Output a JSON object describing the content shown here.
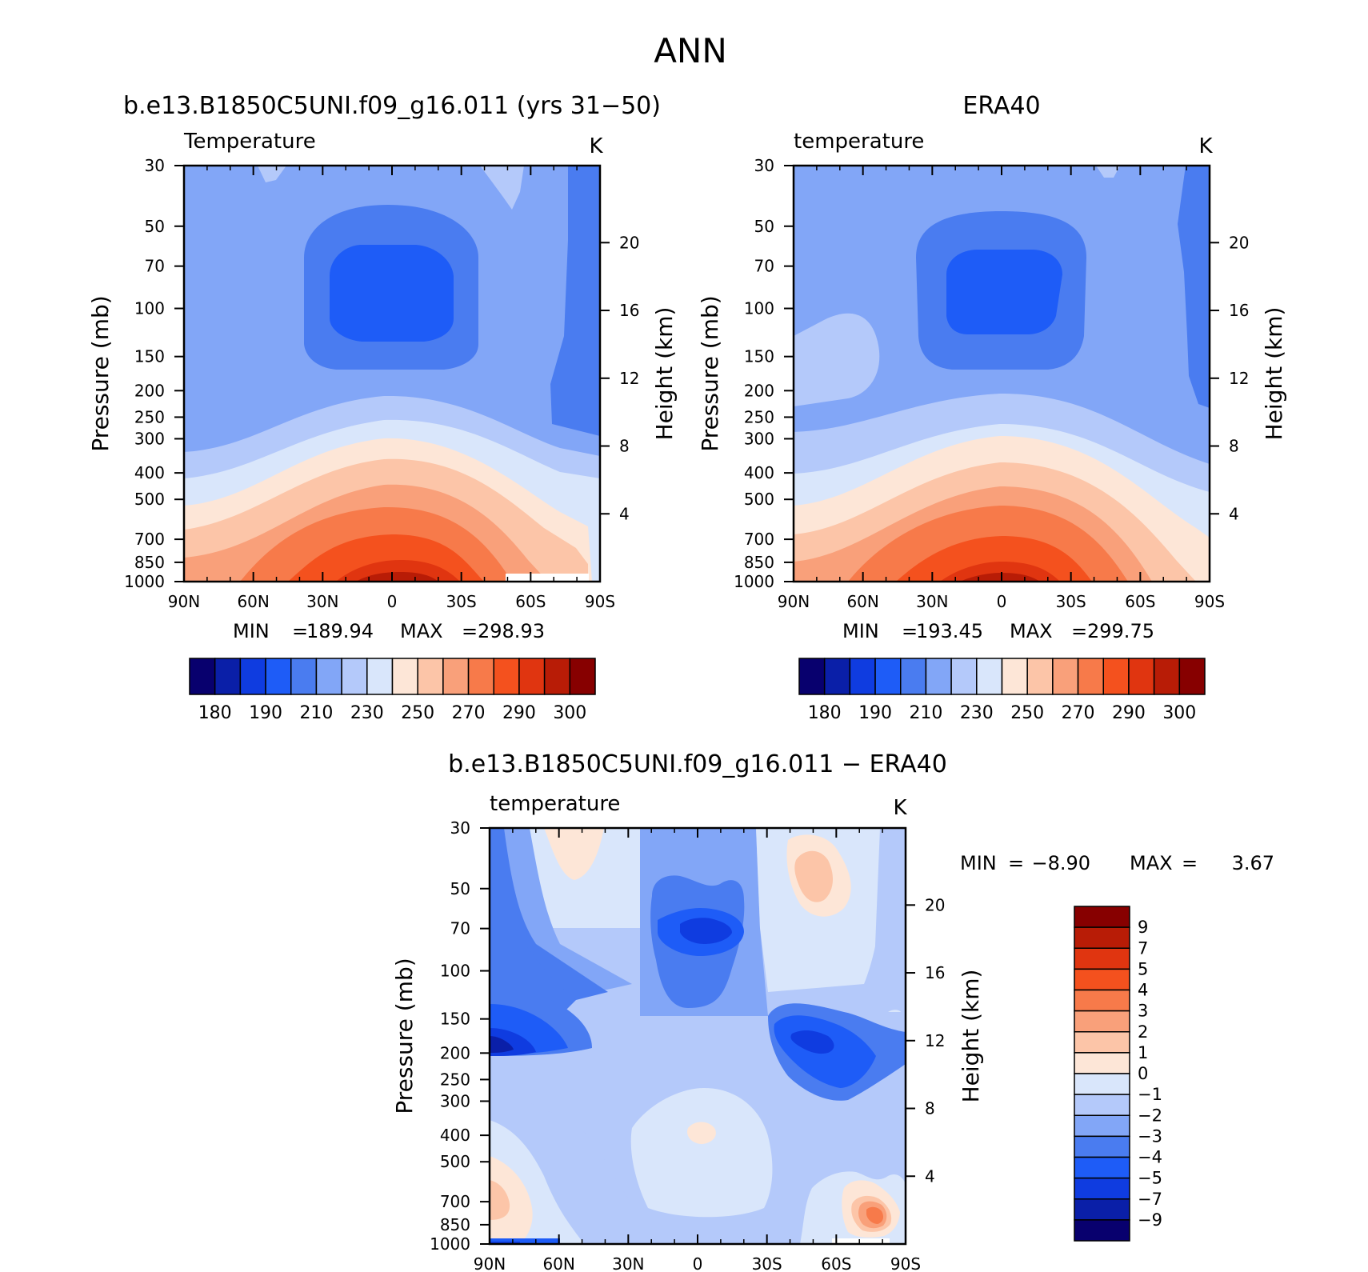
{
  "figure_title": "ANN",
  "chart_data": [
    {
      "id": "model",
      "type": "heatmap",
      "title": "b.e13.B1850C5UNI.f09_g16.011 (yrs 31−50)",
      "variable_label": "Temperature",
      "units": "K",
      "ylabel": "Pressure (mb)",
      "ylabel_right": "Height (km)",
      "x_ticks": [
        "90N",
        "60N",
        "30N",
        "0",
        "30S",
        "60S",
        "90S"
      ],
      "y_ticks": [
        "30",
        "50",
        "70",
        "100",
        "150",
        "200",
        "250",
        "300",
        "400",
        "500",
        "700",
        "850",
        "1000"
      ],
      "y_ticks_right": [
        "20",
        "16",
        "12",
        "8",
        "4"
      ],
      "min_label": "MIN",
      "min_value": "189.94",
      "max_label": "MAX",
      "max_value": "298.93",
      "colorbar_ticks": [
        "180",
        "190",
        "210",
        "230",
        "250",
        "270",
        "290",
        "300"
      ],
      "colorbar_colors": [
        "#08006e",
        "#0a1fa8",
        "#0f3ce0",
        "#1e5cf7",
        "#4a7cf0",
        "#82a6f7",
        "#b4c9fa",
        "#d9e6fb",
        "#fde6d7",
        "#fcc5a8",
        "#f9a07a",
        "#f77a4a",
        "#f4511e",
        "#e03510",
        "#b81c06",
        "#870000"
      ],
      "grid": false
    },
    {
      "id": "obs",
      "type": "heatmap",
      "title": "ERA40",
      "variable_label": "temperature",
      "units": "K",
      "ylabel": "Pressure (mb)",
      "ylabel_right": "Height (km)",
      "x_ticks": [
        "90N",
        "60N",
        "30N",
        "0",
        "30S",
        "60S",
        "90S"
      ],
      "y_ticks": [
        "30",
        "50",
        "70",
        "100",
        "150",
        "200",
        "250",
        "300",
        "400",
        "500",
        "700",
        "850",
        "1000"
      ],
      "y_ticks_right": [
        "20",
        "16",
        "12",
        "8",
        "4"
      ],
      "min_label": "MIN",
      "min_value": "193.45",
      "max_label": "MAX",
      "max_value": "299.75",
      "colorbar_ticks": [
        "180",
        "190",
        "210",
        "230",
        "250",
        "270",
        "290",
        "300"
      ],
      "colorbar_colors": [
        "#08006e",
        "#0a1fa8",
        "#0f3ce0",
        "#1e5cf7",
        "#4a7cf0",
        "#82a6f7",
        "#b4c9fa",
        "#d9e6fb",
        "#fde6d7",
        "#fcc5a8",
        "#f9a07a",
        "#f77a4a",
        "#f4511e",
        "#e03510",
        "#b81c06",
        "#870000"
      ],
      "grid": false
    },
    {
      "id": "diff",
      "type": "heatmap",
      "title": "b.e13.B1850C5UNI.f09_g16.011 − ERA40",
      "variable_label": "temperature",
      "units": "K",
      "ylabel": "Pressure (mb)",
      "ylabel_right": "Height (km)",
      "x_ticks": [
        "90N",
        "60N",
        "30N",
        "0",
        "30S",
        "60S",
        "90S"
      ],
      "y_ticks": [
        "30",
        "50",
        "70",
        "100",
        "150",
        "200",
        "250",
        "300",
        "400",
        "500",
        "700",
        "850",
        "1000"
      ],
      "y_ticks_right": [
        "20",
        "16",
        "12",
        "8",
        "4"
      ],
      "min_label": "MIN",
      "min_value": "−8.90",
      "max_label": "MAX",
      "max_value": "3.67",
      "colorbar_ticks": [
        "9",
        "7",
        "5",
        "4",
        "3",
        "2",
        "1",
        "0",
        "−1",
        "−2",
        "−3",
        "−4",
        "−5",
        "−7",
        "−9"
      ],
      "colorbar_colors": [
        "#870000",
        "#b81c06",
        "#e03510",
        "#f4511e",
        "#f77a4a",
        "#f9a07a",
        "#fcc5a8",
        "#fde6d7",
        "#d9e6fb",
        "#b4c9fa",
        "#82a6f7",
        "#4a7cf0",
        "#1e5cf7",
        "#0f3ce0",
        "#0a1fa8",
        "#08006e"
      ],
      "grid": false
    }
  ]
}
